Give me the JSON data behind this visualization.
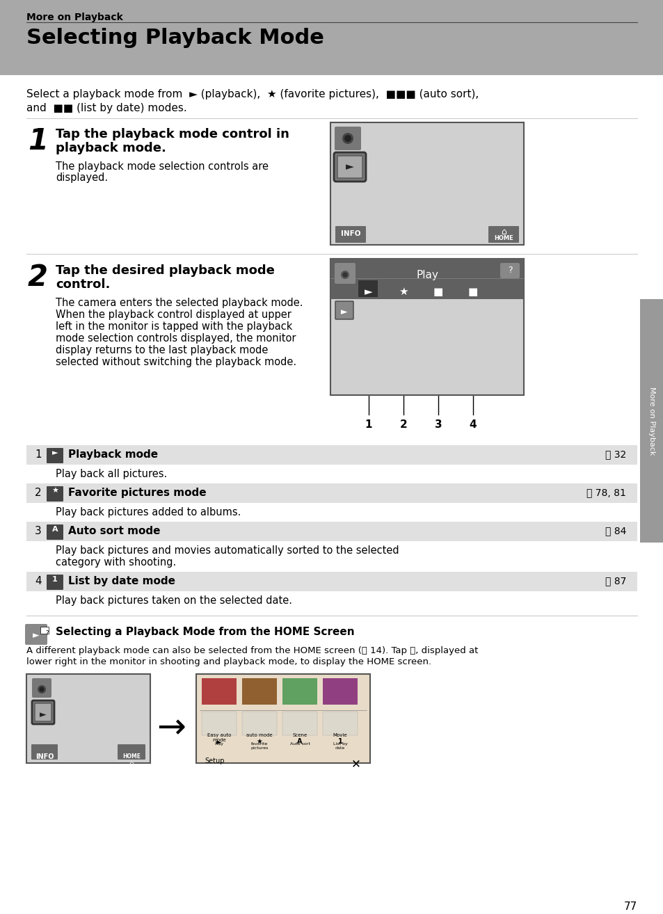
{
  "page_bg": "#ffffff",
  "header_bg": "#a8a8a8",
  "title_bg": "#a8a8a8",
  "header_text": "More on Playback",
  "title": "Selecting Playback Mode",
  "intro_line1": "Select a playback mode from  ► (playback),  ★ (favorite pictures),  ■■■ (auto sort),",
  "intro_line2": "and  ■■ (list by date) modes.",
  "step1_num": "1",
  "step1_bold1": "Tap the playback mode control in",
  "step1_bold2": "playback mode.",
  "step1_body1": "The playback mode selection controls are",
  "step1_body2": "displayed.",
  "step2_num": "2",
  "step2_bold1": "Tap the desired playback mode",
  "step2_bold2": "control.",
  "step2_body": [
    "The camera enters the selected playback mode.",
    "When the playback control displayed at upper",
    "left in the monitor is tapped with the playback",
    "mode selection controls displayed, the monitor",
    "display returns to the last playback mode",
    "selected without switching the playback mode."
  ],
  "callout_nums": [
    "1",
    "2",
    "3",
    "4"
  ],
  "table_rows": [
    {
      "num": "1",
      "label": "Playback mode",
      "ref": "32",
      "desc": "Play back all pictures."
    },
    {
      "num": "2",
      "label": "Favorite pictures mode",
      "ref": "78, 81",
      "desc": "Play back pictures added to albums."
    },
    {
      "num": "3",
      "label": "Auto sort mode",
      "ref": "84",
      "desc": "Play back pictures and movies automatically sorted to the selected\ncategory with shooting."
    },
    {
      "num": "4",
      "label": "List by date mode",
      "ref": "87",
      "desc": "Play back pictures taken on the selected date."
    }
  ],
  "note_title": "Selecting a Playback Mode from the HOME Screen",
  "note_body1": "A different playback mode can also be selected from the HOME screen (⧁ 14). Tap ⧁, displayed at",
  "note_body2": "lower right in the monitor in shooting and playback mode, to display the HOME screen.",
  "sidebar_text": "More on Playback",
  "page_num": "77",
  "table_row_bg": "#e0e0e0",
  "screen_bg": "#d0d0d0",
  "screen_border": "#555555",
  "dark_bar_bg": "#606060",
  "btn_bg": "#686868"
}
